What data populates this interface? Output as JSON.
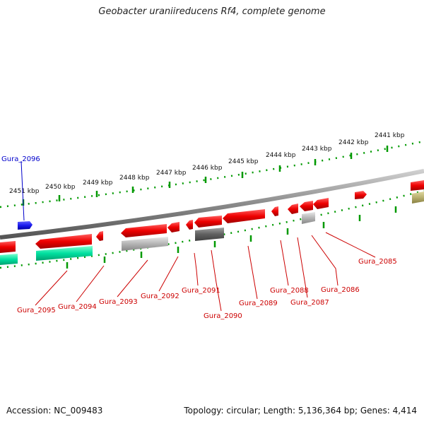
{
  "title": "Geobacter uraniireducens Rf4, complete genome",
  "accession": "Accession: NC_009483",
  "summary": "Topology: circular; Length: 5,136,364 bp; Genes: 4,414",
  "colors": {
    "gene_forward": "#ee0000",
    "gene_reverse_feature": "#1a1aee",
    "label_default": "#cc0000",
    "label_blue": "#0000cc",
    "backbone": "#808080",
    "tick": "#009900",
    "cds_teal": "#00e0a0",
    "cds_light_gray": "#b4b4b4",
    "cds_dark_gray": "#606060",
    "cds_olive": "#b8b070"
  },
  "scale": {
    "unit": "kbp",
    "ticks": [
      {
        "label": "2451 kbp"
      },
      {
        "label": "2450 kbp"
      },
      {
        "label": "2449 kbp"
      },
      {
        "label": "2448 kbp"
      },
      {
        "label": "2447 kbp"
      },
      {
        "label": "2446 kbp"
      },
      {
        "label": "2445 kbp"
      },
      {
        "label": "2444 kbp"
      },
      {
        "label": "2443 kbp"
      },
      {
        "label": "2442 kbp"
      },
      {
        "label": "2441 kbp"
      }
    ]
  },
  "genes": [
    {
      "id": "Gura_2096",
      "color": "blue"
    },
    {
      "id": "Gura_2095",
      "color": "red"
    },
    {
      "id": "Gura_2094",
      "color": "red"
    },
    {
      "id": "Gura_2093",
      "color": "red"
    },
    {
      "id": "Gura_2092",
      "color": "red"
    },
    {
      "id": "Gura_2091",
      "color": "red"
    },
    {
      "id": "Gura_2090",
      "color": "red"
    },
    {
      "id": "Gura_2089",
      "color": "red"
    },
    {
      "id": "Gura_2088",
      "color": "red"
    },
    {
      "id": "Gura_2087",
      "color": "red"
    },
    {
      "id": "Gura_2086",
      "color": "red"
    },
    {
      "id": "Gura_2085",
      "color": "red"
    }
  ]
}
